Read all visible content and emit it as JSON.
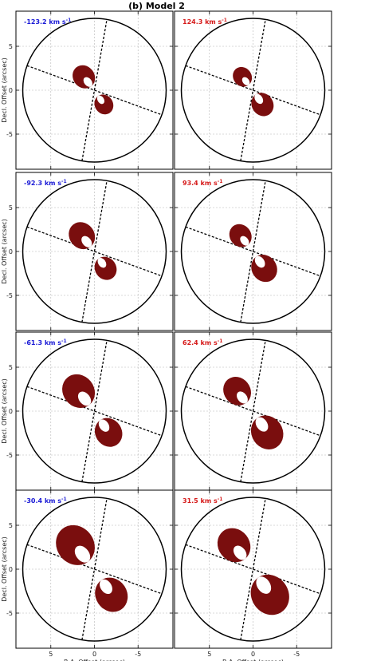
{
  "figure": {
    "title": "(b) Model 2",
    "xlabel": "R.A. Offset (arcsec)",
    "ylabel": "Decl. Offset (arcsec)",
    "colors": {
      "blue_label": "#1a1ad6",
      "red_label": "#d61a1a",
      "shell": "#7a0e0e",
      "grid": "#b5b5b5"
    }
  },
  "chart_data": [
    {
      "type": "channel-map",
      "panel": 1,
      "label": "-123.2 km s",
      "superscript": "-1",
      "label_color": "blue",
      "lobe_scale": 0.34,
      "lobe_order": [
        "top-left",
        "bottom-right"
      ],
      "xlim": [
        9,
        -9
      ],
      "ylim": [
        -9,
        9
      ],
      "xticks": [
        5,
        0,
        -5
      ],
      "yticks": [
        5,
        0,
        -5
      ],
      "grid": true
    },
    {
      "type": "channel-map",
      "panel": 2,
      "label": "124.3 km s",
      "superscript": "-1",
      "label_color": "red",
      "lobe_scale": 0.34,
      "lobe_order": [
        "bottom-right",
        "top-left"
      ],
      "xlim": [
        9,
        -9
      ],
      "ylim": [
        -9,
        9
      ],
      "xticks": [
        5,
        0,
        -5
      ],
      "yticks": [
        5,
        0,
        -5
      ],
      "grid": true
    },
    {
      "type": "channel-map",
      "panel": 3,
      "label": "-92.3 km s",
      "superscript": "-1",
      "label_color": "blue",
      "lobe_scale": 0.48,
      "lobe_order": [
        "top-left",
        "bottom-right"
      ],
      "xlim": [
        9,
        -9
      ],
      "ylim": [
        -9,
        9
      ],
      "xticks": [
        5,
        0,
        -5
      ],
      "yticks": [
        5,
        0,
        -5
      ],
      "grid": true
    },
    {
      "type": "channel-map",
      "panel": 4,
      "label": "93.4 km s",
      "superscript": "-1",
      "label_color": "red",
      "lobe_scale": 0.48,
      "lobe_order": [
        "bottom-right",
        "top-left"
      ],
      "xlim": [
        9,
        -9
      ],
      "ylim": [
        -9,
        9
      ],
      "xticks": [
        5,
        0,
        -5
      ],
      "yticks": [
        5,
        0,
        -5
      ],
      "grid": true
    },
    {
      "type": "channel-map",
      "panel": 5,
      "label": "-61.3 km s",
      "superscript": "-1",
      "label_color": "blue",
      "lobe_scale": 0.72,
      "lobe_order": [
        "top-left",
        "bottom-right"
      ],
      "xlim": [
        9,
        -9
      ],
      "ylim": [
        -9,
        9
      ],
      "xticks": [
        5,
        0,
        -5
      ],
      "yticks": [
        5,
        0,
        -5
      ],
      "grid": true
    },
    {
      "type": "channel-map",
      "panel": 6,
      "label": "62.4 km s",
      "superscript": "-1",
      "label_color": "red",
      "lobe_scale": 0.72,
      "lobe_order": [
        "bottom-right",
        "top-left"
      ],
      "xlim": [
        9,
        -9
      ],
      "ylim": [
        -9,
        9
      ],
      "xticks": [
        5,
        0,
        -5
      ],
      "yticks": [
        5,
        0,
        -5
      ],
      "grid": true
    },
    {
      "type": "channel-map",
      "panel": 7,
      "label": "-30.4 km s",
      "superscript": "-1",
      "label_color": "blue",
      "lobe_scale": 0.95,
      "lobe_order": [
        "top-left",
        "bottom-right"
      ],
      "xlim": [
        9,
        -9
      ],
      "ylim": [
        -9,
        9
      ],
      "xticks": [
        5,
        0,
        -5
      ],
      "yticks": [
        5,
        0,
        -5
      ],
      "grid": true
    },
    {
      "type": "channel-map",
      "panel": 8,
      "label": "31.5 km s",
      "superscript": "-1",
      "label_color": "red",
      "lobe_scale": 0.95,
      "lobe_order": [
        "bottom-right",
        "top-left"
      ],
      "xlim": [
        9,
        -9
      ],
      "ylim": [
        -9,
        9
      ],
      "xticks": [
        5,
        0,
        -5
      ],
      "yticks": [
        5,
        0,
        -5
      ],
      "grid": true
    }
  ]
}
